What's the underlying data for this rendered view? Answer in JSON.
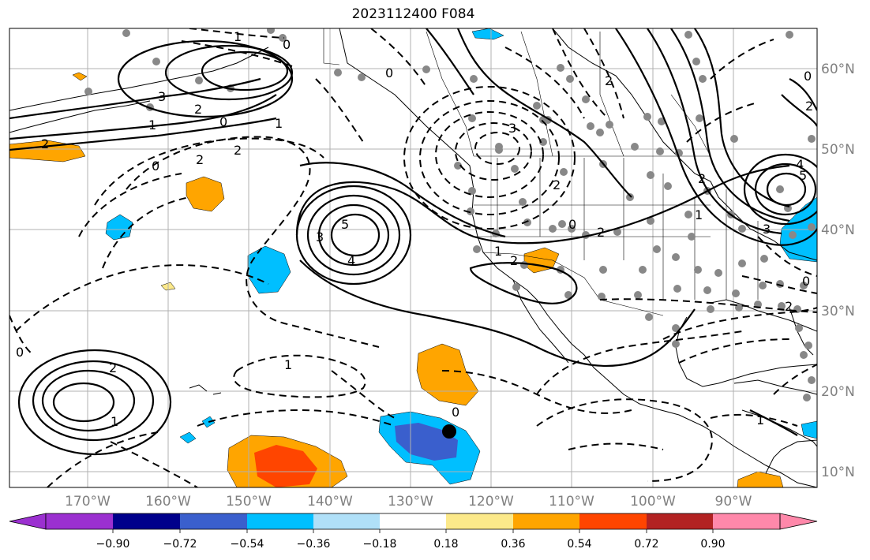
{
  "title": "2023112400 F084",
  "lat_labels": [
    "60°N",
    "50°N",
    "40°N",
    "30°N",
    "20°N",
    "10°N"
  ],
  "lon_labels": [
    "170°W",
    "160°W",
    "150°W",
    "140°W",
    "130°W",
    "120°W",
    "110°W",
    "100°W",
    "90°W"
  ],
  "colorbar": {
    "ticks": [
      "−0.90",
      "−0.72",
      "−0.54",
      "−0.36",
      "−0.18",
      "0.18",
      "0.36",
      "0.54",
      "0.72",
      "0.90"
    ],
    "colors": [
      "#9b30d0",
      "#00008b",
      "#3a5fcd",
      "#00bfff",
      "#b0e0f8",
      "#ffffff",
      "#fce98a",
      "#ffa500",
      "#ff4500",
      "#b22222",
      "#ff88aa"
    ]
  },
  "contour_labels": [
    "1",
    "0",
    "0",
    "3",
    "2",
    "0",
    "1",
    "2",
    "0",
    "2",
    "5",
    "3",
    "4",
    "1",
    "2",
    "3",
    "2",
    "1",
    "0",
    "2",
    "1",
    "2",
    "2",
    "0",
    "2",
    "4",
    "5",
    "3",
    "2",
    "1",
    "0",
    "2",
    "2",
    "0",
    "1",
    "0",
    "1"
  ],
  "marker": {
    "lat": 15,
    "lon": -126
  }
}
